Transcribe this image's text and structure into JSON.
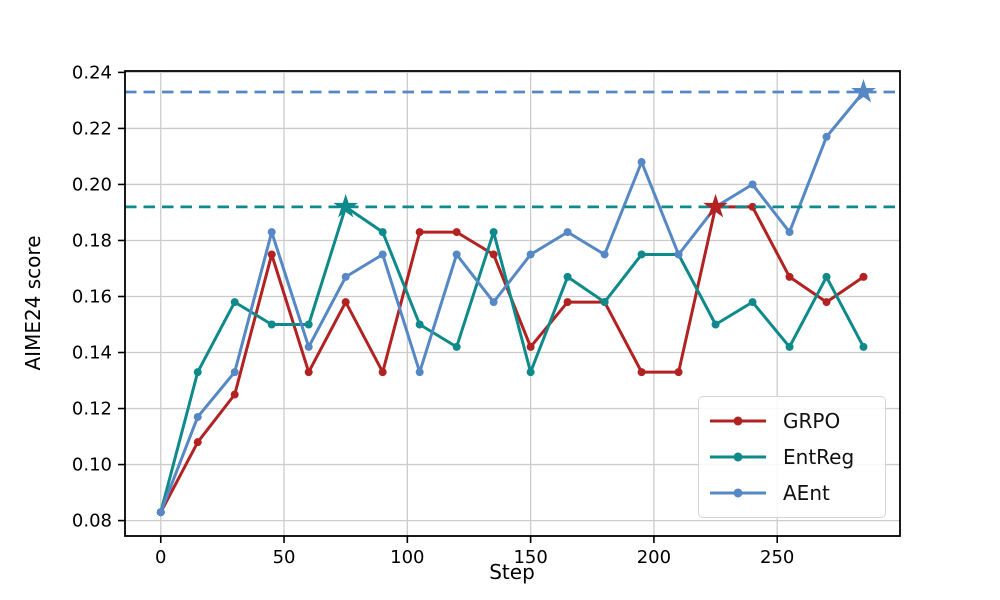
{
  "chart_data": {
    "type": "line",
    "title": "",
    "xlabel": "Step",
    "ylabel": "AIME24 score",
    "x": [
      0,
      15,
      30,
      45,
      60,
      75,
      90,
      105,
      120,
      135,
      150,
      165,
      180,
      195,
      210,
      225,
      240,
      255,
      270,
      285
    ],
    "series": [
      {
        "name": "GRPO",
        "color": "#b22222",
        "values": [
          0.083,
          0.108,
          0.125,
          0.175,
          0.133,
          0.158,
          0.133,
          0.183,
          0.183,
          0.175,
          0.142,
          0.158,
          0.158,
          0.133,
          0.133,
          0.192,
          0.192,
          0.167,
          0.158,
          0.167
        ],
        "max_point": {
          "step": 225,
          "value": 0.192,
          "marker": "star"
        }
      },
      {
        "name": "EntReg",
        "color": "#0e8a8a",
        "values": [
          0.083,
          0.133,
          0.158,
          0.15,
          0.15,
          0.192,
          0.183,
          0.15,
          0.142,
          0.183,
          0.133,
          0.167,
          0.158,
          0.175,
          0.175,
          0.15,
          0.158,
          0.142,
          0.167,
          0.142
        ],
        "max_point": {
          "step": 75,
          "value": 0.192,
          "marker": "star"
        }
      },
      {
        "name": "AEnt",
        "color": "#5588c5",
        "values": [
          0.083,
          0.117,
          0.133,
          0.183,
          0.142,
          0.167,
          0.175,
          0.133,
          0.175,
          0.158,
          0.175,
          0.183,
          0.175,
          0.208,
          0.175,
          0.192,
          0.2,
          0.183,
          0.217,
          0.233
        ],
        "max_point": {
          "step": 285,
          "value": 0.233,
          "marker": "star"
        }
      }
    ],
    "hlines": [
      {
        "y": 0.233,
        "color": "#5588c5",
        "style": "dashed"
      },
      {
        "y": 0.192,
        "color": "#0e8a8a",
        "style": "dashed"
      }
    ],
    "xticks": [
      0,
      50,
      100,
      150,
      200,
      250
    ],
    "xtick_labels": [
      "0",
      "50",
      "100",
      "150",
      "200",
      "250"
    ],
    "yticks": [
      0.08,
      0.1,
      0.12,
      0.14,
      0.16,
      0.18,
      0.2,
      0.22,
      0.24
    ],
    "ytick_labels": [
      "0.08",
      "0.10",
      "0.12",
      "0.14",
      "0.16",
      "0.18",
      "0.20",
      "0.22",
      "0.24"
    ],
    "xlim": [
      -14.5,
      299.8
    ],
    "ylim": [
      0.0745,
      0.2405
    ],
    "grid": true,
    "grid_color": "#cccccc",
    "legend_position": "lower right",
    "legend_entries": [
      "GRPO",
      "EntReg",
      "AEnt"
    ]
  }
}
